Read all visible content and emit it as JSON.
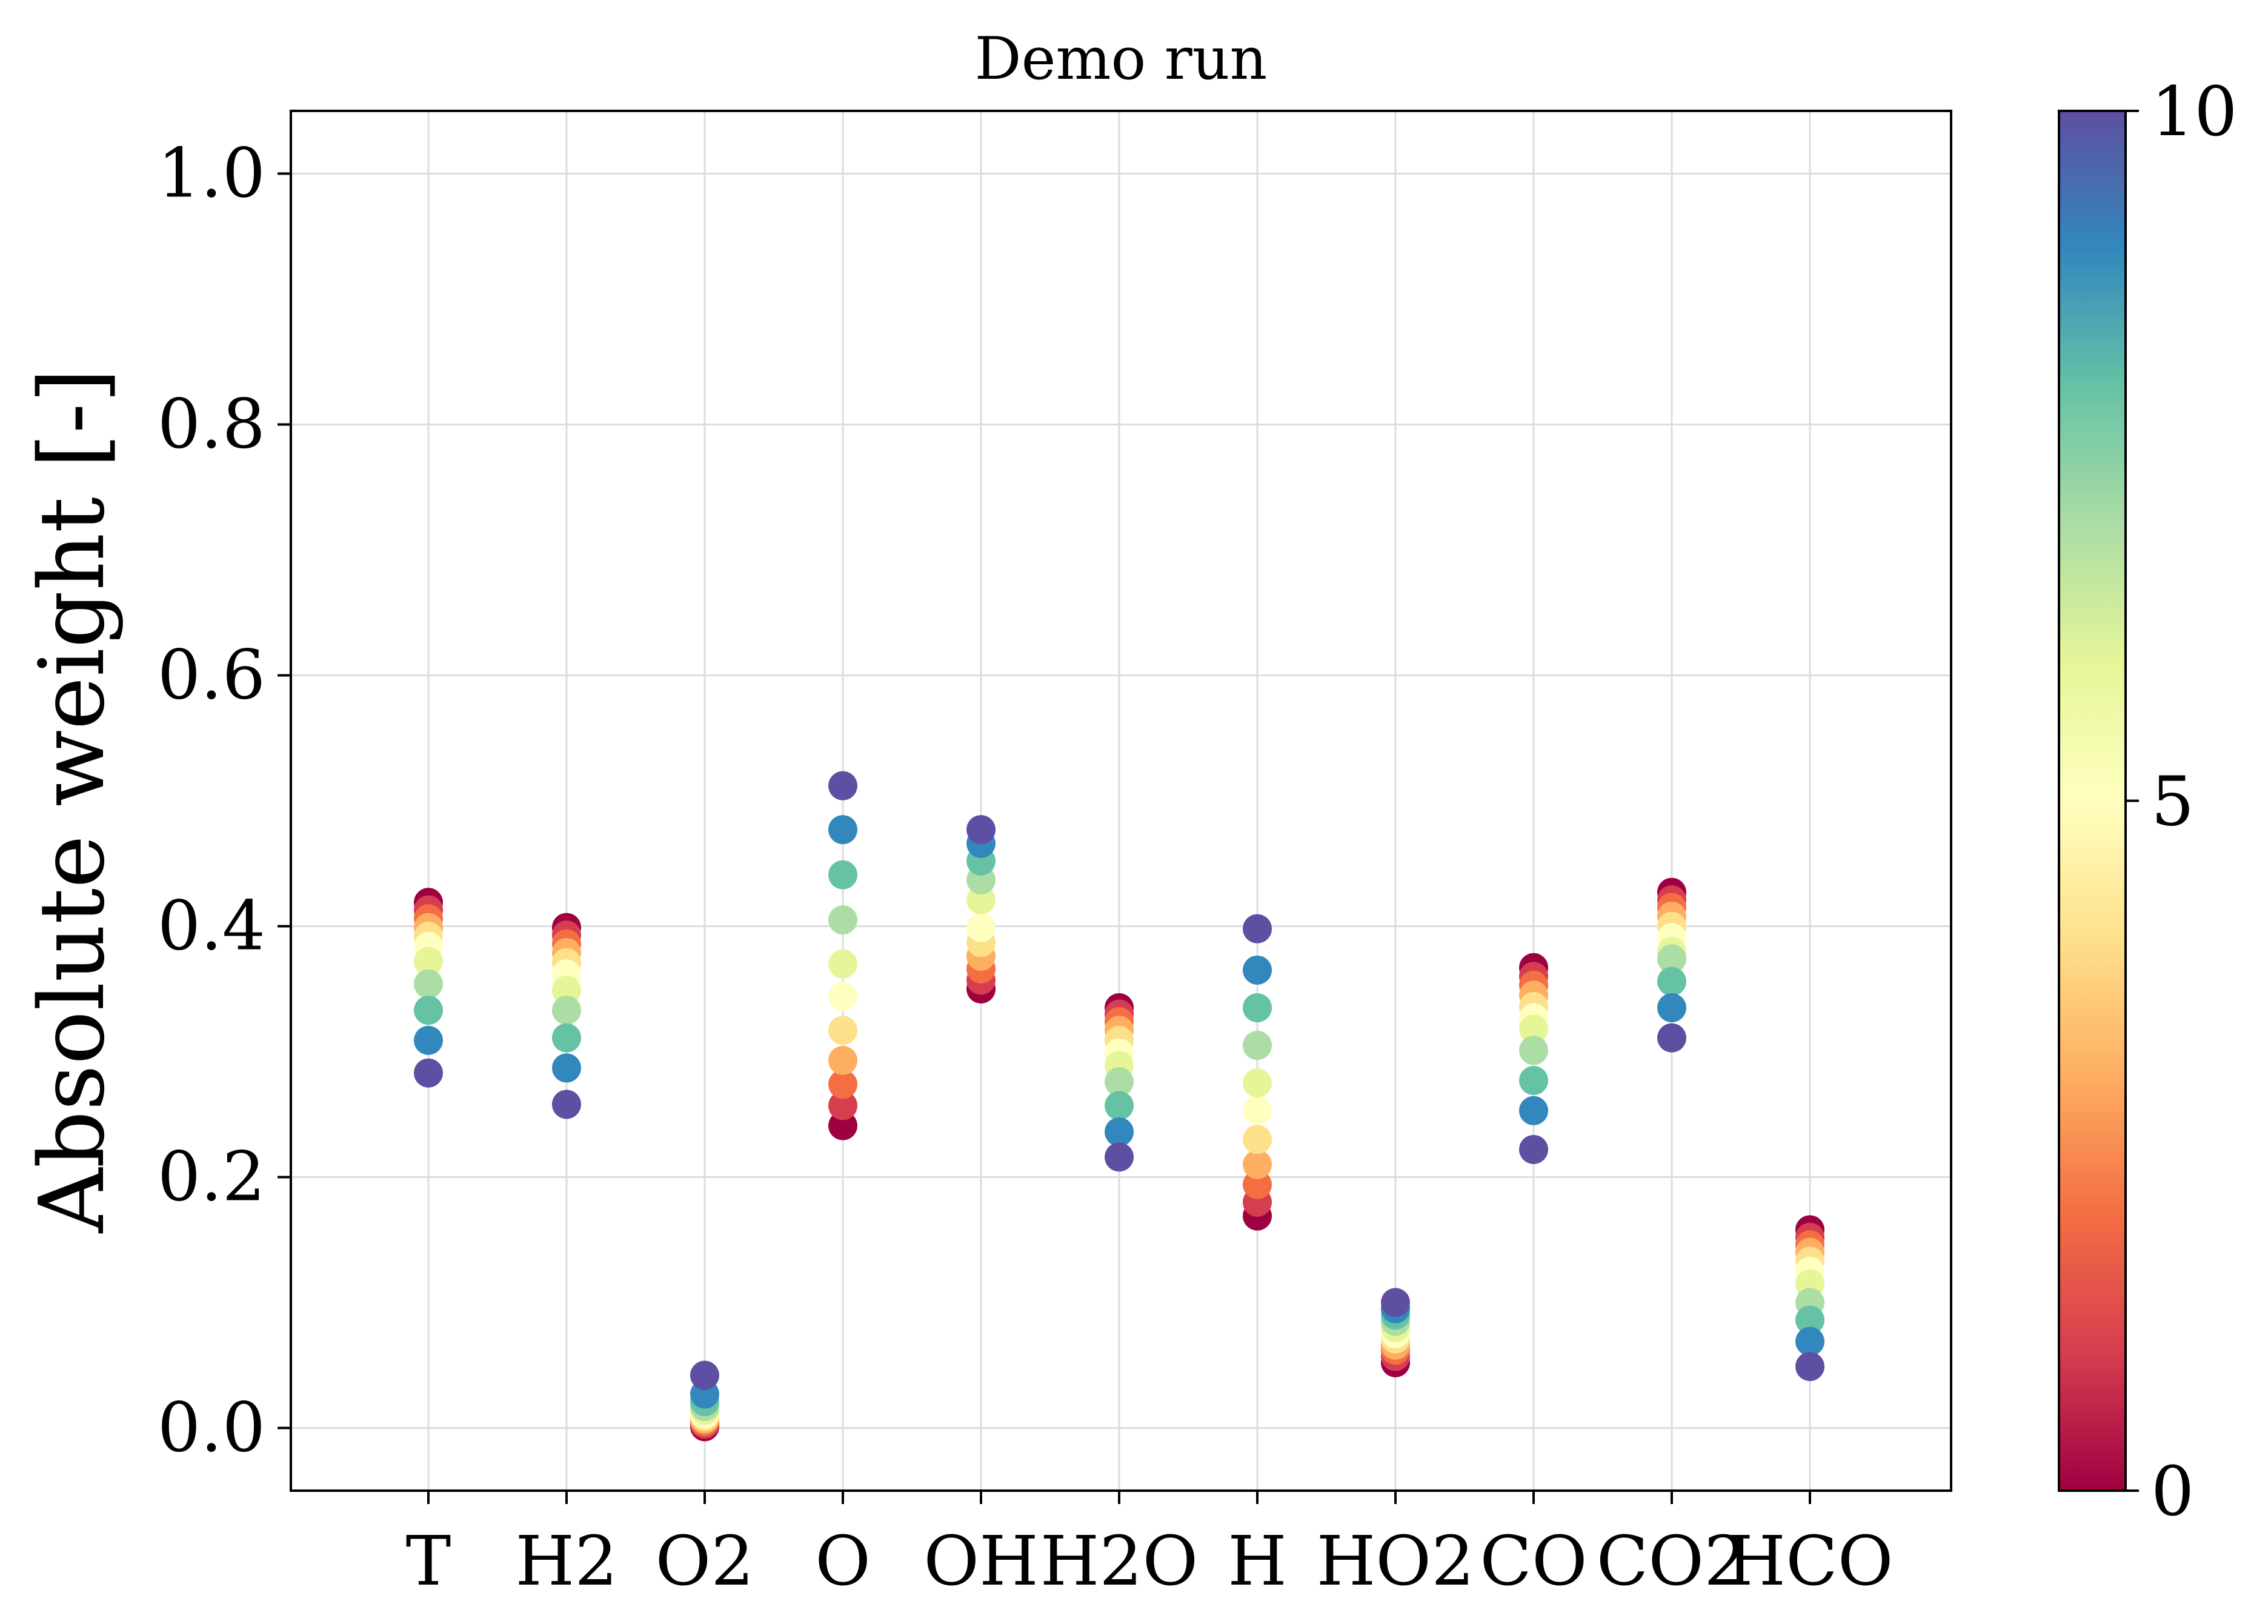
{
  "chart_data": {
    "type": "scatter",
    "title": "Demo run",
    "xlabel": "",
    "ylabel": "Absolute weight [-]",
    "categories": [
      "T",
      "H2",
      "O2",
      "O",
      "OH",
      "H2O",
      "H",
      "HO2",
      "CO",
      "CO2",
      "HCO"
    ],
    "ylim": [
      -0.05,
      1.05
    ],
    "yticks": [
      "0.0",
      "0.2",
      "0.4",
      "0.6",
      "0.8",
      "1.0"
    ],
    "grid": true,
    "colorbar": {
      "range": [
        0,
        10
      ],
      "ticks": [
        "0",
        "5",
        "10"
      ],
      "colormap": "Spectral",
      "stops": [
        "#9e0142",
        "#d53e4f",
        "#f46d43",
        "#fdae61",
        "#fee08b",
        "#ffffbf",
        "#e6f598",
        "#abdda4",
        "#66c2a5",
        "#3288bd",
        "#5e4fa2"
      ]
    },
    "series": [
      {
        "category": "T",
        "values": [
          0.419,
          0.413,
          0.406,
          0.399,
          0.392,
          0.384,
          0.372,
          0.354,
          0.333,
          0.309,
          0.283
        ]
      },
      {
        "category": "H2",
        "values": [
          0.399,
          0.393,
          0.386,
          0.379,
          0.371,
          0.362,
          0.349,
          0.333,
          0.311,
          0.287,
          0.258
        ]
      },
      {
        "category": "O2",
        "values": [
          0.001,
          0.003,
          0.005,
          0.007,
          0.009,
          0.011,
          0.014,
          0.017,
          0.021,
          0.027,
          0.042
        ]
      },
      {
        "category": "O",
        "values": [
          0.241,
          0.257,
          0.274,
          0.293,
          0.317,
          0.344,
          0.37,
          0.405,
          0.441,
          0.477,
          0.512
        ]
      },
      {
        "category": "OH",
        "values": [
          0.35,
          0.357,
          0.366,
          0.376,
          0.387,
          0.399,
          0.421,
          0.437,
          0.452,
          0.466,
          0.477
        ]
      },
      {
        "category": "H2O",
        "values": [
          0.335,
          0.33,
          0.324,
          0.317,
          0.309,
          0.299,
          0.289,
          0.276,
          0.257,
          0.236,
          0.216
        ]
      },
      {
        "category": "H",
        "values": [
          0.169,
          0.18,
          0.194,
          0.21,
          0.23,
          0.253,
          0.275,
          0.305,
          0.335,
          0.365,
          0.398
        ]
      },
      {
        "category": "HO2",
        "values": [
          0.052,
          0.057,
          0.062,
          0.066,
          0.071,
          0.075,
          0.08,
          0.085,
          0.09,
          0.095,
          0.1
        ]
      },
      {
        "category": "CO",
        "values": [
          0.367,
          0.36,
          0.353,
          0.345,
          0.336,
          0.327,
          0.318,
          0.301,
          0.277,
          0.253,
          0.222
        ]
      },
      {
        "category": "CO2",
        "values": [
          0.427,
          0.421,
          0.415,
          0.408,
          0.4,
          0.391,
          0.38,
          0.374,
          0.356,
          0.335,
          0.311
        ]
      },
      {
        "category": "HCO",
        "values": [
          0.158,
          0.152,
          0.146,
          0.14,
          0.133,
          0.125,
          0.115,
          0.1,
          0.086,
          0.069,
          0.049
        ]
      }
    ]
  }
}
